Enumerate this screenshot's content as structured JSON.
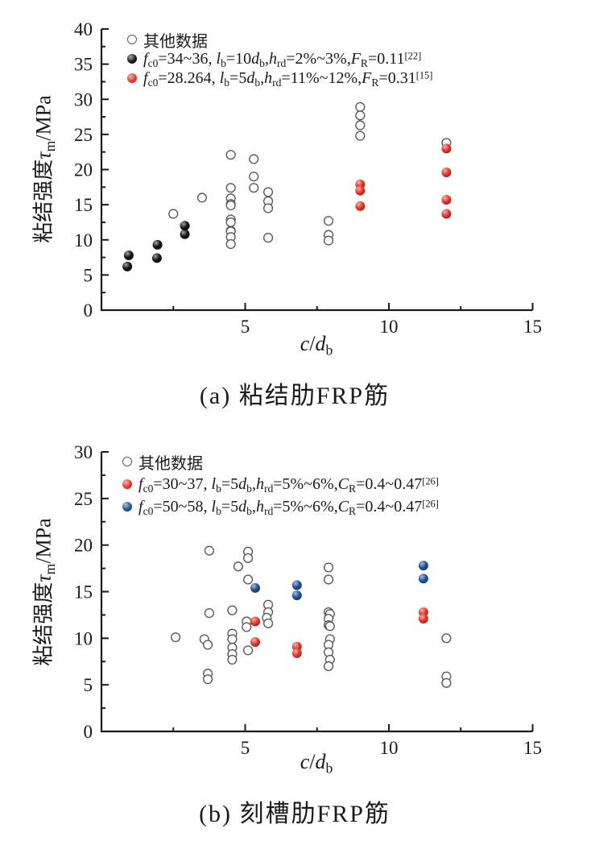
{
  "colors": {
    "axis": "#1a1a1a",
    "open_marker": "#5a5a5a",
    "black_series": "#161616",
    "red_series": "#e8392b",
    "blue_series": "#1e55a0",
    "text": "#1a1a1a"
  },
  "chart_data": [
    {
      "type": "scatter",
      "panel": "a",
      "caption": "(a) 粘结肋FRP筋",
      "xlabel": "c/d_{b}",
      "ylabel": "粘结强度τ_{m}/MPa",
      "xlim": [
        0,
        15
      ],
      "ylim": [
        0,
        40
      ],
      "x_major_ticks": [
        5,
        10,
        15
      ],
      "x_minor_ticks": [
        2.5,
        7.5,
        12.5
      ],
      "y_major_ticks": [
        0,
        5,
        10,
        15,
        20,
        25,
        30,
        35,
        40
      ],
      "y_minor_ticks": [
        2.5,
        7.5,
        12.5,
        17.5,
        22.5,
        27.5,
        32.5,
        37.5
      ],
      "grid": false,
      "legend_position": "top-left-inside",
      "legend": [
        {
          "marker": "open",
          "label": "其他数据"
        },
        {
          "marker": "black",
          "label": "f_{c0}=34~36, l_{b}=10d_{b},h_{rd}=2%~3%,F_{R}=0.11^{[22]}"
        },
        {
          "marker": "red",
          "label": "f_{c0}=28.264, l_{b}=5d_{b},h_{rd}=11%~12%,F_{R}=0.31^{[15]}"
        }
      ],
      "series": [
        {
          "name": "其他数据",
          "style": "open",
          "points": [
            [
              2.5,
              13.7
            ],
            [
              3.5,
              16.0
            ],
            [
              4.5,
              22.1
            ],
            [
              4.5,
              17.4
            ],
            [
              4.5,
              15.9
            ],
            [
              4.5,
              15.1
            ],
            [
              4.5,
              14.9
            ],
            [
              4.5,
              12.9
            ],
            [
              4.5,
              12.5
            ],
            [
              4.5,
              11.3
            ],
            [
              4.5,
              11.2
            ],
            [
              4.5,
              10.4
            ],
            [
              4.5,
              9.4
            ],
            [
              5.3,
              21.5
            ],
            [
              5.3,
              19.0
            ],
            [
              5.3,
              17.4
            ],
            [
              5.8,
              16.8
            ],
            [
              5.8,
              15.5
            ],
            [
              5.8,
              14.5
            ],
            [
              5.8,
              10.3
            ],
            [
              7.9,
              12.7
            ],
            [
              7.9,
              10.7
            ],
            [
              7.9,
              9.9
            ],
            [
              9.0,
              28.9
            ],
            [
              9.0,
              27.7
            ],
            [
              9.0,
              26.3
            ],
            [
              9.0,
              24.8
            ],
            [
              12.0,
              23.8
            ]
          ]
        },
        {
          "name": "f_{c0}=34~36, l_{b}=10d_{b},h_{rd}=2%~3%,F_{R}=0.11^{[22]}",
          "style": "black",
          "points": [
            [
              0.9,
              6.2
            ],
            [
              0.95,
              7.8
            ],
            [
              1.93,
              7.4
            ],
            [
              1.95,
              9.3
            ],
            [
              2.9,
              10.8
            ],
            [
              2.9,
              12.0
            ]
          ]
        },
        {
          "name": "f_{c0}=28.264, l_{b}=5d_{b},h_{rd}=11%~12%,F_{R}=0.31^{[15]}",
          "style": "red",
          "points": [
            [
              9.0,
              17.9
            ],
            [
              9.0,
              17.0
            ],
            [
              9.0,
              14.8
            ],
            [
              12.0,
              23.0
            ],
            [
              12.0,
              19.6
            ],
            [
              12.0,
              15.7
            ],
            [
              12.0,
              13.7
            ]
          ]
        }
      ]
    },
    {
      "type": "scatter",
      "panel": "b",
      "caption": "(b) 刻槽肋FRP筋",
      "xlabel": "c/d_{b}",
      "ylabel": "粘结强度τ_{m}/MPa",
      "xlim": [
        0,
        15
      ],
      "ylim": [
        0,
        30
      ],
      "x_major_ticks": [
        5,
        10,
        15
      ],
      "x_minor_ticks": [
        2.5,
        7.5,
        12.5
      ],
      "y_major_ticks": [
        0,
        5,
        10,
        15,
        20,
        25,
        30
      ],
      "y_minor_ticks": [
        2.5,
        7.5,
        12.5,
        17.5,
        22.5,
        27.5
      ],
      "grid": false,
      "legend_position": "top-left-inside",
      "legend": [
        {
          "marker": "open",
          "label": "其他数据"
        },
        {
          "marker": "red",
          "label": "f_{c0}=30~37, l_{b}=5d_{b},h_{rd}=5%~6%,C_{R}=0.4~0.47^{[26]}"
        },
        {
          "marker": "blue",
          "label": "f_{c0}=50~58, l_{b}=5d_{b},h_{rd}=5%~6%,C_{R}=0.4~0.47^{[26]}"
        }
      ],
      "series": [
        {
          "name": "其他数据",
          "style": "open",
          "points": [
            [
              2.58,
              10.1
            ],
            [
              3.58,
              9.9
            ],
            [
              3.7,
              9.3
            ],
            [
              3.75,
              19.4
            ],
            [
              3.75,
              12.7
            ],
            [
              3.7,
              6.2
            ],
            [
              3.7,
              5.6
            ],
            [
              4.55,
              13.0
            ],
            [
              4.55,
              10.5
            ],
            [
              4.55,
              9.9
            ],
            [
              4.55,
              9.0
            ],
            [
              4.55,
              8.3
            ],
            [
              4.55,
              7.7
            ],
            [
              4.76,
              17.7
            ],
            [
              5.1,
              19.3
            ],
            [
              5.1,
              18.6
            ],
            [
              5.1,
              16.3
            ],
            [
              5.05,
              11.8
            ],
            [
              5.05,
              11.2
            ],
            [
              5.1,
              8.7
            ],
            [
              5.8,
              13.6
            ],
            [
              5.8,
              12.8
            ],
            [
              5.75,
              12.2
            ],
            [
              5.8,
              11.6
            ],
            [
              7.9,
              17.6
            ],
            [
              7.9,
              16.3
            ],
            [
              7.9,
              12.8
            ],
            [
              7.95,
              12.6
            ],
            [
              7.9,
              12.1
            ],
            [
              7.9,
              11.4
            ],
            [
              7.95,
              11.3
            ],
            [
              7.95,
              9.9
            ],
            [
              7.9,
              9.3
            ],
            [
              7.9,
              8.5
            ],
            [
              7.95,
              7.7
            ],
            [
              7.9,
              7.0
            ],
            [
              12.0,
              10.0
            ],
            [
              12.0,
              5.9
            ],
            [
              12.0,
              5.2
            ]
          ]
        },
        {
          "name": "f_{c0}=30~37, l_{b}=5d_{b},h_{rd}=5%~6%,C_{R}=0.4~0.47^{[26]}",
          "style": "red",
          "points": [
            [
              5.35,
              11.8
            ],
            [
              5.35,
              9.6
            ],
            [
              6.8,
              9.1
            ],
            [
              6.8,
              8.4
            ],
            [
              11.2,
              12.8
            ],
            [
              11.2,
              12.1
            ]
          ]
        },
        {
          "name": "f_{c0}=50~58, l_{b}=5d_{b},h_{rd}=5%~6%,C_{R}=0.4~0.47^{[26]}",
          "style": "blue",
          "points": [
            [
              5.35,
              15.4
            ],
            [
              6.8,
              15.7
            ],
            [
              6.8,
              14.6
            ],
            [
              11.2,
              17.8
            ],
            [
              11.2,
              16.4
            ]
          ]
        }
      ]
    }
  ]
}
